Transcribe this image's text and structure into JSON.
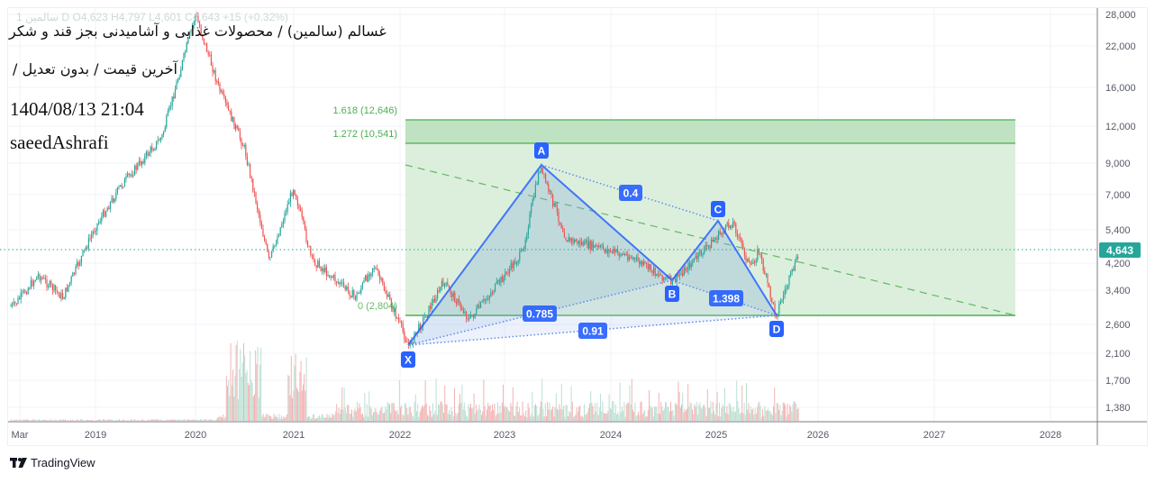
{
  "header": {
    "ohlc_line": "1  سالمین  D  O4,623  H4,797  L4,601  C4,643  +15 (+0.32%)",
    "title": "غسالم (سالمین) / محصولات غذایی و آشامیدنی بجز قند و شکر",
    "subtitle": "آخرین قیمت / بدون تعدیل /",
    "timestamp": "1404/08/13 21:04",
    "author": "saeedAshrafi"
  },
  "footer": {
    "brand": "TradingView",
    "brand_mark": "TV"
  },
  "colors": {
    "up": "#26a69a",
    "down": "#ef5350",
    "pattern_line": "#2962ff",
    "pattern_fill": "#b3c7f7",
    "fib_fill": "#dcefdc",
    "fib_fill_top": "#bfe2c2",
    "fib_line": "#4caf50",
    "fib_text": "#4caf50",
    "price_label_bg": "#26a69a",
    "grid": "#f0f3fa",
    "axis_text": "#555a66"
  },
  "chart_data": {
    "type": "candlestick",
    "title": "غسالم (سالمین) / محصولات غذایی و آشامیدنی بجز قند و شکر",
    "scale": "logarithmic",
    "timeframe": "1D",
    "last_price": 4643,
    "last_price_label": "4,643",
    "ohlc": {
      "open": 4623,
      "high": 4797,
      "low": 4601,
      "close": 4643,
      "change": 15,
      "change_pct": "+0.32%"
    },
    "x_axis": {
      "tick_labels": [
        "Mar",
        "2019",
        "2020",
        "2021",
        "2022",
        "2023",
        "2024",
        "2025",
        "2026",
        "2027",
        "2028"
      ],
      "tick_x": [
        22,
        106,
        217,
        326,
        444,
        560,
        678,
        795,
        908,
        1037,
        1166
      ]
    },
    "y_axis": {
      "tick_labels": [
        "28,000",
        "22,000",
        "16,000",
        "12,000",
        "9,000",
        "7,000",
        "5,400",
        "4,200",
        "3,400",
        "2,600",
        "2,100",
        "1,700",
        "1,380"
      ],
      "tick_values": [
        28000,
        22000,
        16000,
        12000,
        9000,
        7000,
        5400,
        4200,
        3400,
        2600,
        2100,
        1700,
        1380
      ],
      "tick_y": [
        16,
        51,
        97,
        140,
        181,
        216,
        255,
        292,
        322,
        360,
        392,
        422,
        452
      ]
    },
    "approx_price_path": [
      {
        "date": "2018-03",
        "price": 3000
      },
      {
        "date": "2018-06",
        "price": 3800
      },
      {
        "date": "2018-09",
        "price": 3200
      },
      {
        "date": "2019-01",
        "price": 5500
      },
      {
        "date": "2019-04",
        "price": 7500
      },
      {
        "date": "2019-09",
        "price": 11000
      },
      {
        "date": "2020-01",
        "price": 28000
      },
      {
        "date": "2020-04",
        "price": 15500
      },
      {
        "date": "2020-07",
        "price": 10000
      },
      {
        "date": "2020-10",
        "price": 4200
      },
      {
        "date": "2021-01",
        "price": 7500
      },
      {
        "date": "2021-03",
        "price": 4300
      },
      {
        "date": "2021-08",
        "price": 3200
      },
      {
        "date": "2021-10",
        "price": 4100
      },
      {
        "date": "2022-01",
        "price": 2600
      },
      {
        "date": "2022-02",
        "price": 2200
      },
      {
        "date": "2022-06",
        "price": 3600
      },
      {
        "date": "2022-09",
        "price": 2700
      },
      {
        "date": "2023-03",
        "price": 4500
      },
      {
        "date": "2023-05",
        "price": 8700
      },
      {
        "date": "2023-08",
        "price": 5000
      },
      {
        "date": "2024-03",
        "price": 4400
      },
      {
        "date": "2024-08",
        "price": 3600
      },
      {
        "date": "2025-02",
        "price": 5400
      },
      {
        "date": "2025-03",
        "price": 5700
      },
      {
        "date": "2025-05",
        "price": 4000
      },
      {
        "date": "2025-06",
        "price": 4600
      },
      {
        "date": "2025-08",
        "price": 2800
      },
      {
        "date": "2025-11",
        "price": 4643
      }
    ],
    "harmonic_pattern": {
      "points": [
        {
          "label": "X",
          "date": "2022-02",
          "price": 2200
        },
        {
          "label": "A",
          "date": "2023-05",
          "price": 8700
        },
        {
          "label": "B",
          "date": "2024-08",
          "price": 3600
        },
        {
          "label": "C",
          "date": "2025-03",
          "price": 5700
        },
        {
          "label": "D",
          "date": "2025-08",
          "price": 2804
        }
      ],
      "ratios": [
        {
          "label": "0.4",
          "between": "A-C"
        },
        {
          "label": "0.785",
          "between": "X-B"
        },
        {
          "label": "1.398",
          "between": "B-D"
        },
        {
          "label": "0.91",
          "between": "X-D"
        }
      ]
    },
    "fib_levels": [
      {
        "ratio": "1.618",
        "price": 12646,
        "label": "1.618 (12,646)"
      },
      {
        "ratio": "1.272",
        "price": 10541,
        "label": "1.272 (10,541)"
      },
      {
        "ratio": "0",
        "price": 2804,
        "label": "0 (2,804)"
      }
    ],
    "volume": "histogram, peaks in early 2020 and early 2021",
    "legend": [],
    "grid": true
  }
}
